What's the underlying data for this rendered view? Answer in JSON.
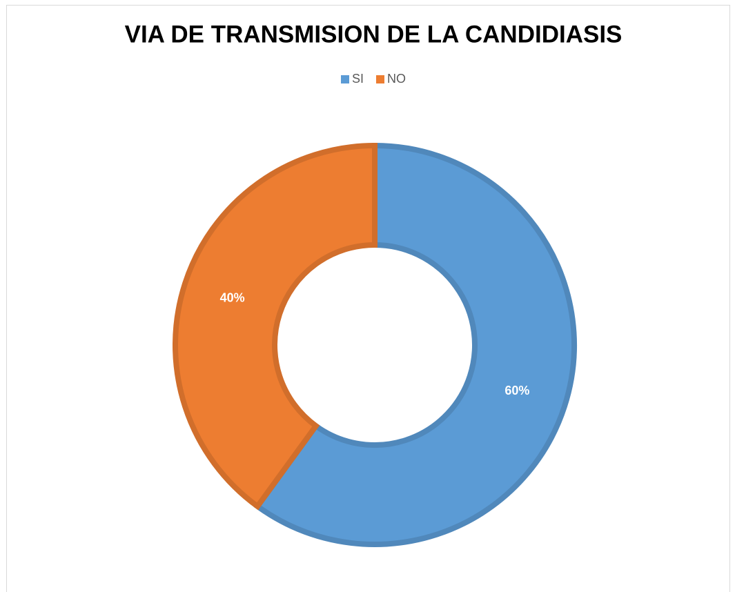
{
  "chart_data": {
    "type": "donut",
    "title": "VIA DE TRANSMISION DE LA CANDIDIASIS",
    "categories": [
      "SI",
      "NO"
    ],
    "values": [
      60,
      40
    ],
    "value_labels": [
      "60%",
      "40%"
    ],
    "colors": [
      "#5b9bd5",
      "#ed7d31"
    ],
    "legend": "top"
  }
}
